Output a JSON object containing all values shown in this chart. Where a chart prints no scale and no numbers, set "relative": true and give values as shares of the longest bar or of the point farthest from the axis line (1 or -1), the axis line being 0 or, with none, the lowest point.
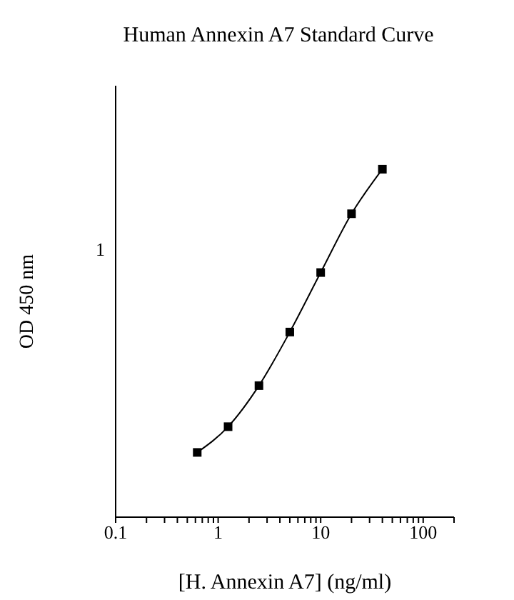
{
  "chart_data": {
    "type": "line",
    "title": "Human Annexin A7 Standard Curve",
    "xlabel": "[H. Annexin A7] (ng/ml)",
    "ylabel": "OD 450 nm",
    "log": "x",
    "relative": true,
    "x": [
      0.625,
      1.25,
      2.5,
      5,
      10,
      20,
      40
    ],
    "series": [
      {
        "color": "#000000",
        "values": [
          0.186,
          0.26,
          0.378,
          0.532,
          0.703,
          0.872,
          1
        ]
      }
    ],
    "xlim": [
      0.1,
      200
    ],
    "xticks": [
      0.1,
      {
        "value": 0.2,
        "label": null
      },
      {
        "value": 0.3,
        "label": null
      },
      {
        "value": 0.4,
        "label": null
      },
      {
        "value": 0.5,
        "label": null
      },
      {
        "value": 0.6,
        "label": null
      },
      {
        "value": 0.7,
        "label": null
      },
      {
        "value": 0.8,
        "label": null
      },
      {
        "value": 0.9,
        "label": null
      },
      1,
      {
        "value": 2,
        "label": null
      },
      {
        "value": 3,
        "label": null
      },
      {
        "value": 4,
        "label": null
      },
      {
        "value": 5,
        "label": null
      },
      {
        "value": 6,
        "label": null
      },
      {
        "value": 7,
        "label": null
      },
      {
        "value": 8,
        "label": null
      },
      {
        "value": 9,
        "label": null
      },
      10,
      {
        "value": 20,
        "label": null
      },
      {
        "value": 30,
        "label": null
      },
      {
        "value": 40,
        "label": null
      },
      {
        "value": 50,
        "label": null
      },
      {
        "value": 60,
        "label": null
      },
      {
        "value": 70,
        "label": null
      },
      {
        "value": 80,
        "label": null
      },
      {
        "value": 90,
        "label": null
      },
      100,
      {
        "value": 200,
        "label": null
      }
    ],
    "annotations": [
      "1"
    ],
    "marker": "square",
    "line_style": "solid",
    "grid": false,
    "legend": false
  }
}
